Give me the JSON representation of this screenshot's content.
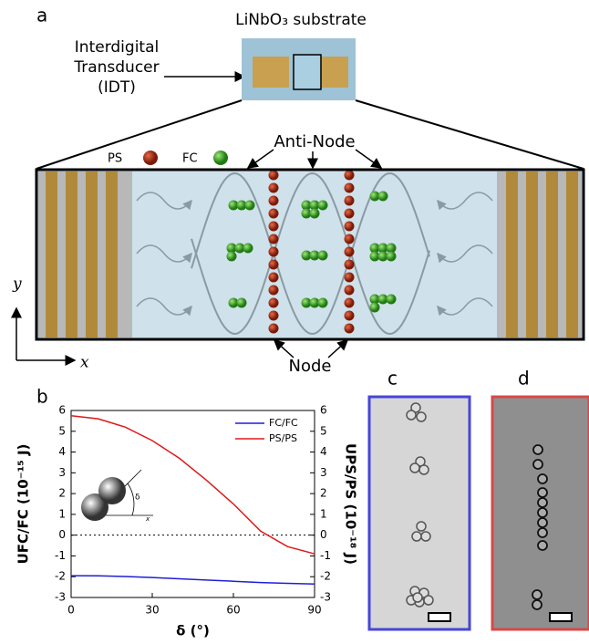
{
  "panel_labels": {
    "a": "a",
    "b": "b",
    "c": "c",
    "d": "d"
  },
  "diagram": {
    "substrate": "LiNbO₃ substrate",
    "idt": [
      "Interdigital",
      "Transducer",
      "(IDT)"
    ],
    "ps": "PS",
    "fc": "FC",
    "anti_node": "Anti-Node",
    "node": "Node",
    "axis_y": "y",
    "axis_x": "x"
  },
  "chart_data": {
    "type": "line",
    "x_label": "δ (°)",
    "y_label": "UFC/FC (10⁻¹⁵ J)",
    "y2_label": "UPS/PS (10⁻¹⁸ J)",
    "inset_angle": "δ",
    "inset_axis": "x",
    "x": [
      0,
      10,
      20,
      30,
      40,
      50,
      60,
      70,
      80,
      90
    ],
    "xlim": [
      0,
      90
    ],
    "xticks": [
      0,
      30,
      60,
      90
    ],
    "ylim": [
      -3,
      6
    ],
    "yticks": [
      -3,
      -2,
      -1,
      0,
      1,
      2,
      3,
      4,
      5,
      6
    ],
    "y2lim": [
      -3,
      6
    ],
    "y2ticks": [
      -3,
      -2,
      -1,
      0,
      1,
      2,
      3,
      4,
      5,
      6
    ],
    "hline": 0,
    "legend": "upper right",
    "series": [
      {
        "name": "FC/FC",
        "color": "#1f1fd6",
        "values": [
          -1.95,
          -1.96,
          -1.99,
          -2.04,
          -2.1,
          -2.16,
          -2.22,
          -2.28,
          -2.32,
          -2.35
        ]
      },
      {
        "name": "PS/PS",
        "color": "#e01818",
        "axis": "y2",
        "values": [
          5.75,
          5.6,
          5.2,
          4.55,
          3.7,
          2.65,
          1.5,
          0.2,
          -0.55,
          -0.9
        ]
      }
    ]
  }
}
